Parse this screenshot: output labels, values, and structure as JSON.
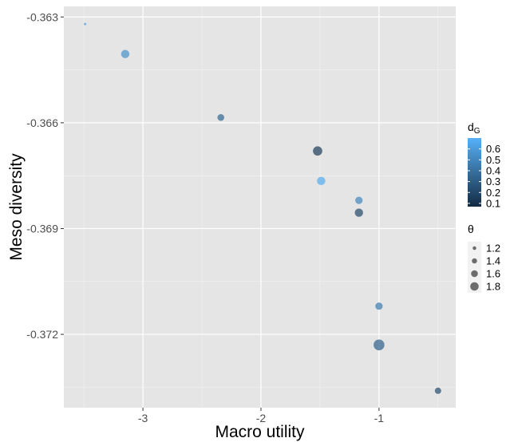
{
  "chart_data": {
    "type": "scatter",
    "xlabel": "Macro utility",
    "ylabel": "Meso diversity",
    "xlim": [
      -3.67,
      -0.35
    ],
    "ylim": [
      -0.37408,
      -0.3627
    ],
    "x_ticks": [
      -3,
      -2,
      -1
    ],
    "y_ticks": [
      -0.363,
      -0.366,
      -0.369,
      -0.372
    ],
    "grid": true,
    "panel_background": "#e5e5e5",
    "points": [
      {
        "x": -3.49,
        "y": -0.3632,
        "dG": 0.6,
        "theta": 1.0
      },
      {
        "x": -3.15,
        "y": -0.36405,
        "dG": 0.55,
        "theta": 1.6
      },
      {
        "x": -2.34,
        "y": -0.36585,
        "dG": 0.35,
        "theta": 1.45
      },
      {
        "x": -1.52,
        "y": -0.3668,
        "dG": 0.15,
        "theta": 1.7
      },
      {
        "x": -1.49,
        "y": -0.36765,
        "dG": 0.68,
        "theta": 1.6
      },
      {
        "x": -1.17,
        "y": -0.3682,
        "dG": 0.5,
        "theta": 1.5
      },
      {
        "x": -1.17,
        "y": -0.36855,
        "dG": 0.2,
        "theta": 1.6
      },
      {
        "x": -1.0,
        "y": -0.3712,
        "dG": 0.45,
        "theta": 1.5
      },
      {
        "x": -1.0,
        "y": -0.3723,
        "dG": 0.32,
        "theta": 1.85
      },
      {
        "x": -0.5,
        "y": -0.3736,
        "dG": 0.22,
        "theta": 1.4
      }
    ],
    "legends": {
      "color": {
        "title": "dG",
        "title_main": "d",
        "title_sub": "G",
        "labels": [
          "0.6",
          "0.5",
          "0.4",
          "0.3",
          "0.2",
          "0.1"
        ],
        "values": [
          0.6,
          0.5,
          0.4,
          0.3,
          0.2,
          0.1
        ],
        "low_color": "#132b43",
        "high_color": "#56b1f7",
        "range": [
          0.07,
          0.7
        ]
      },
      "size": {
        "title": "θ",
        "labels": [
          "1.2",
          "1.4",
          "1.6",
          "1.8"
        ],
        "values": [
          1.2,
          1.4,
          1.6,
          1.8
        ]
      }
    },
    "point_alpha": 0.7
  }
}
